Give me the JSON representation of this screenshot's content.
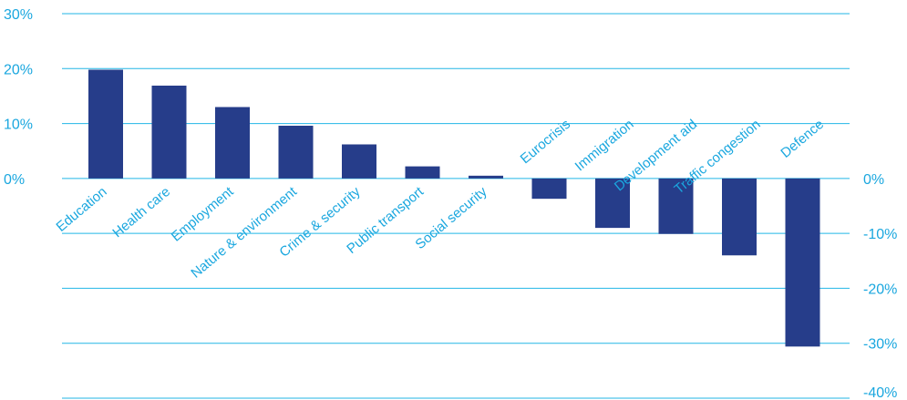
{
  "colors": {
    "bar": "#263d8a",
    "grid": "#22b6e6",
    "text": "#1aa7df"
  },
  "chart_data": {
    "type": "bar",
    "title": "",
    "xlabel": "",
    "ylabel": "",
    "categories": [
      "Education",
      "Health care",
      "Employment",
      "Nature & environment",
      "Crime & security",
      "Public transport",
      "Social security",
      "Eurocrisis",
      "Immigration",
      "Development aid",
      "Traffic congestion",
      "Defence"
    ],
    "values": [
      19.8,
      16.9,
      13.0,
      9.6,
      6.2,
      2.2,
      0.5,
      -3.7,
      -9.0,
      -10.1,
      -14.0,
      -30.6
    ],
    "ylim": [
      -40,
      30
    ],
    "left_ticks": [
      "30%",
      "20%",
      "10%",
      "0%"
    ],
    "left_tick_values": [
      30,
      20,
      10,
      0
    ],
    "right_ticks": [
      "0%",
      "-10%",
      "-20%",
      "-30%",
      "-40%"
    ],
    "right_tick_values": [
      0,
      -10,
      -20,
      -30,
      -40
    ],
    "gridlines": [
      30,
      20,
      10,
      0,
      -10,
      -20,
      -30,
      -40
    ],
    "grid": true,
    "legend": "none"
  }
}
